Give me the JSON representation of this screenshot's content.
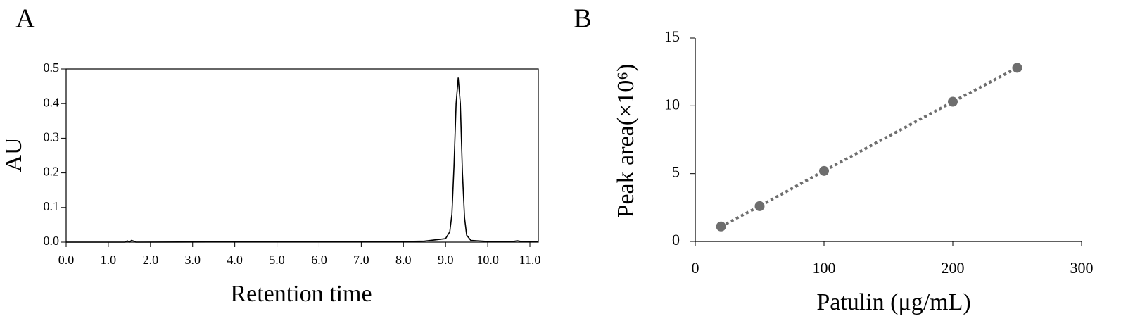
{
  "chart_data": [
    {
      "type": "line",
      "panel": "A",
      "xlabel": "Retention time",
      "ylabel": "AU",
      "frame": true,
      "color": "#000000",
      "x": [
        0,
        1.4,
        1.45,
        1.5,
        1.55,
        1.6,
        1.65,
        8.0,
        8.5,
        9.0,
        9.1,
        9.15,
        9.2,
        9.25,
        9.3,
        9.35,
        9.4,
        9.45,
        9.5,
        9.6,
        10.0,
        10.6,
        10.7,
        10.8,
        11.2
      ],
      "series": [
        {
          "values": [
            0,
            0,
            0.004,
            0,
            0.005,
            0.003,
            0,
            0.002,
            0.003,
            0.01,
            0.03,
            0.08,
            0.22,
            0.4,
            0.475,
            0.4,
            0.2,
            0.07,
            0.02,
            0.005,
            0.002,
            0.002,
            0.004,
            0.002,
            0.001
          ]
        }
      ],
      "xlim": [
        0,
        11.2
      ],
      "xticks": [
        {
          "value": 0,
          "label": "0.0"
        },
        {
          "value": 1,
          "label": "1.0"
        },
        {
          "value": 2,
          "label": "2.0"
        },
        {
          "value": 3,
          "label": "3.0"
        },
        {
          "value": 4,
          "label": "4.0"
        },
        {
          "value": 5,
          "label": "5.0"
        },
        {
          "value": 6,
          "label": "6.0"
        },
        {
          "value": 7,
          "label": "7.0"
        },
        {
          "value": 8,
          "label": "8.0"
        },
        {
          "value": 9,
          "label": "9.0"
        },
        {
          "value": 10,
          "label": "10.0"
        },
        {
          "value": 11,
          "label": "11.0"
        }
      ],
      "ylim": [
        0,
        0.5
      ],
      "yticks": [
        {
          "value": 0,
          "label": "0.0"
        },
        0.1,
        0.2,
        0.3,
        0.4,
        0.5
      ]
    },
    {
      "type": "scatter",
      "panel": "B",
      "xlabel": "Patulin (μg/mL)",
      "ylabel": "Peak area(×10⁶)",
      "frame": false,
      "color": "#6e6e6e",
      "line_style": "dotted",
      "x": [
        20,
        50,
        100,
        200,
        250
      ],
      "series": [
        {
          "values": [
            1.1,
            2.6,
            5.2,
            10.3,
            12.8
          ]
        }
      ],
      "xlim": [
        0,
        300
      ],
      "xticks": [
        0,
        100,
        200,
        300
      ],
      "ylim": [
        0,
        15
      ],
      "yticks": [
        0,
        5,
        10,
        15
      ]
    }
  ]
}
